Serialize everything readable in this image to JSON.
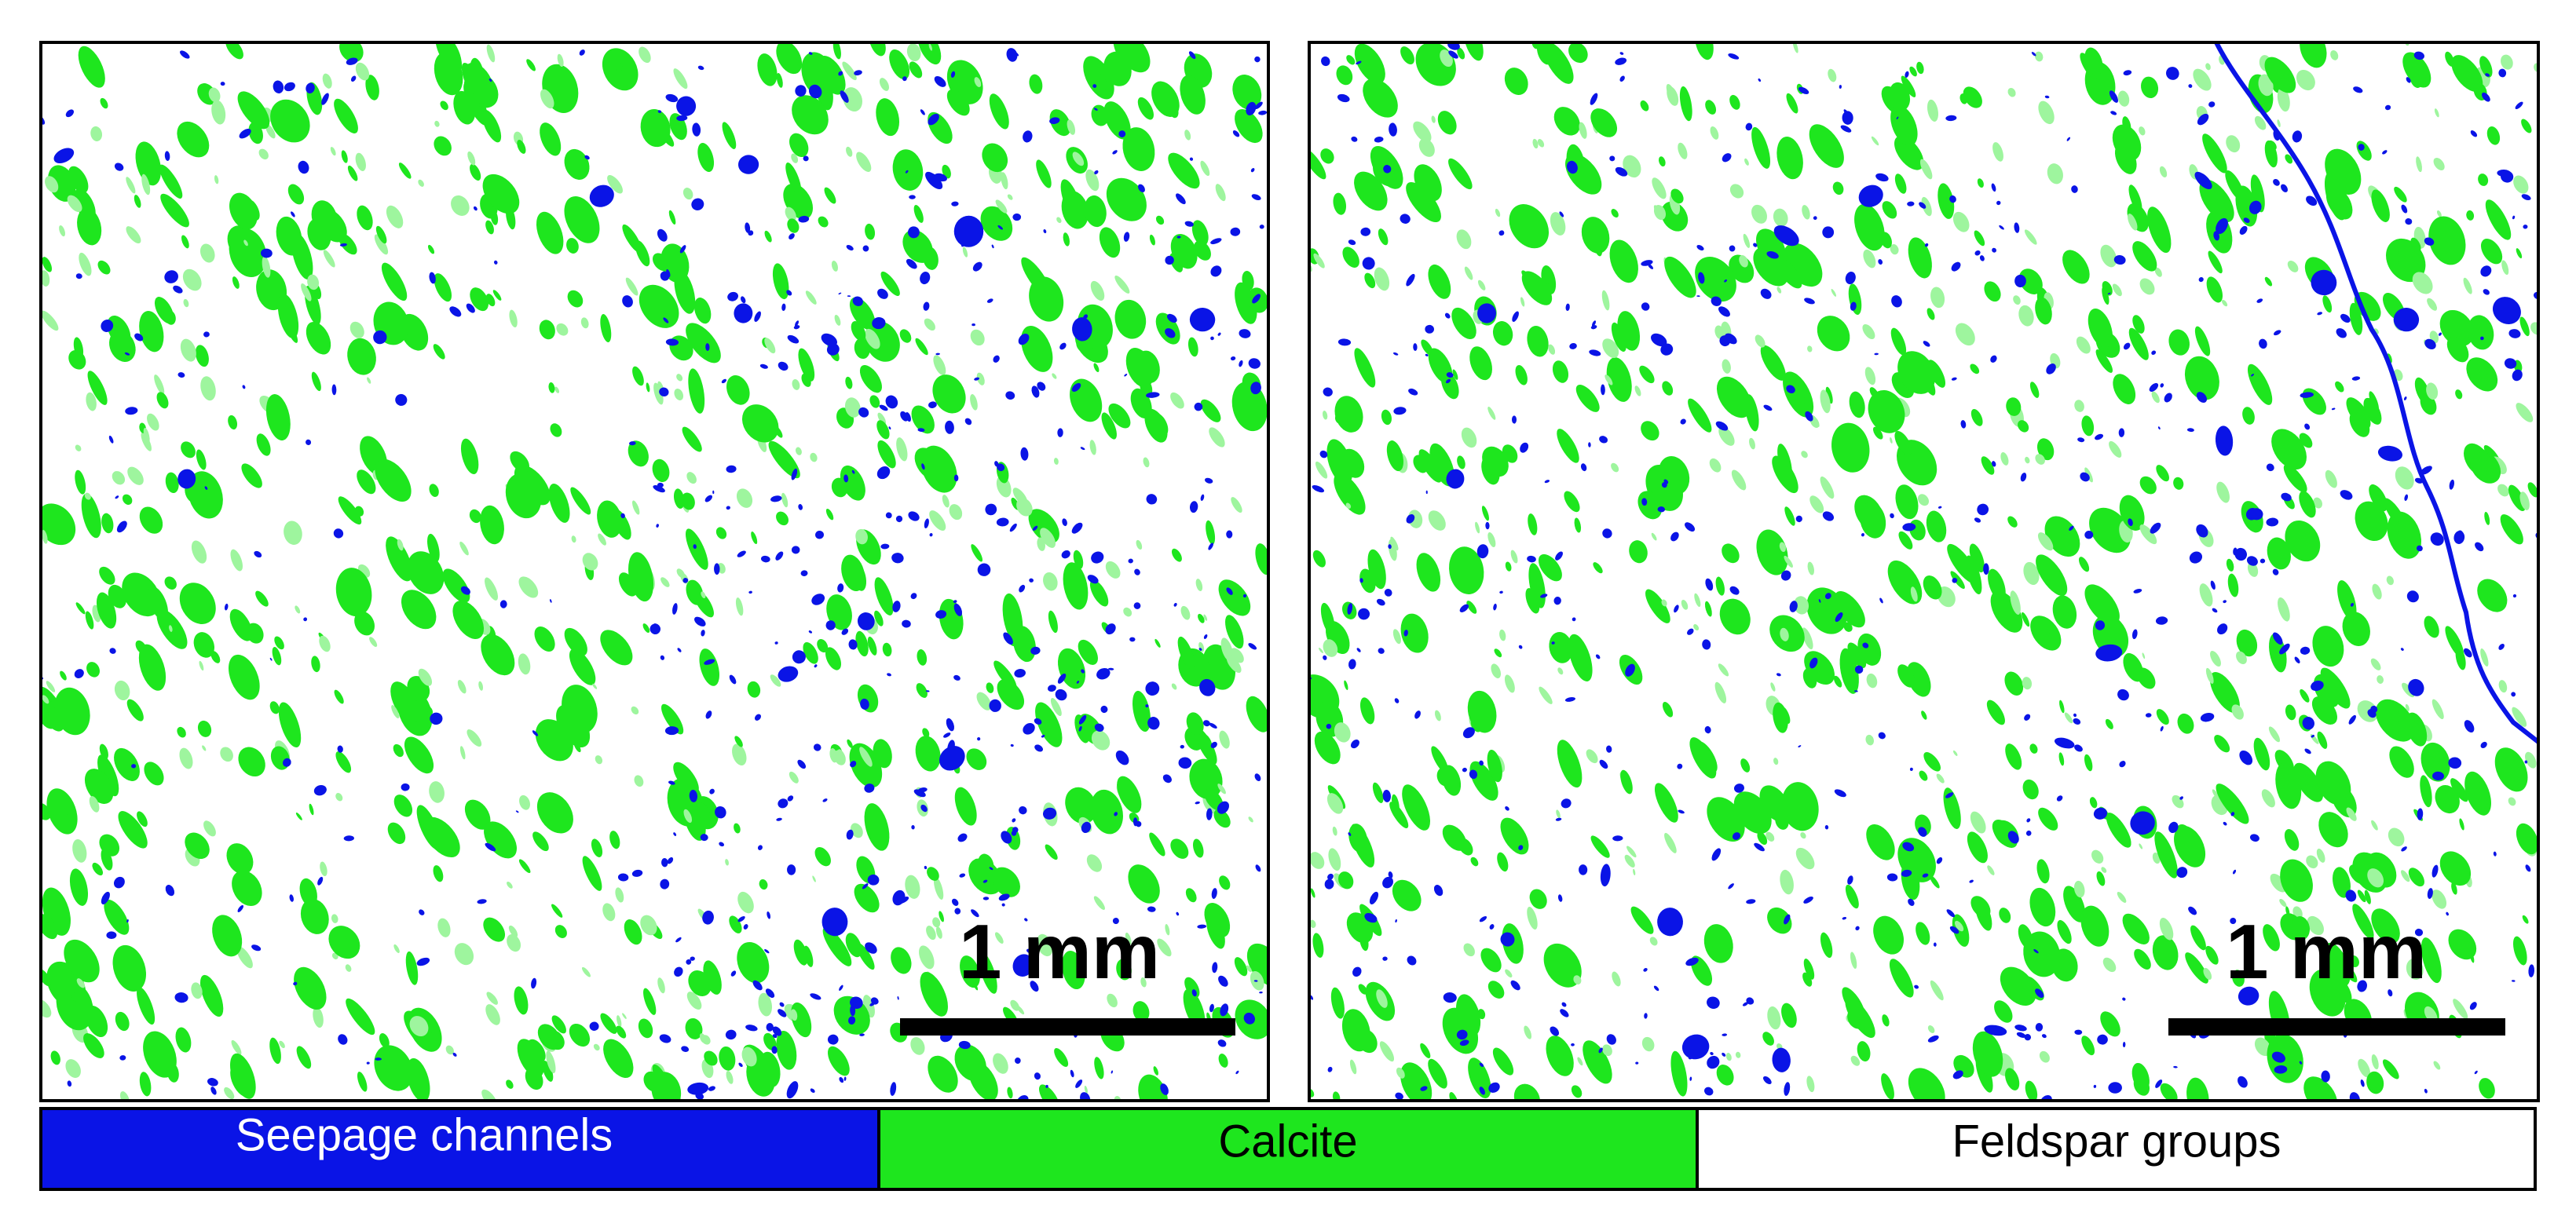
{
  "panels": [
    {
      "scale_label": "1 mm"
    },
    {
      "scale_label": "1 mm"
    }
  ],
  "legend": [
    "Seepage channels",
    "Calcite",
    "Feldspar groups"
  ]
}
